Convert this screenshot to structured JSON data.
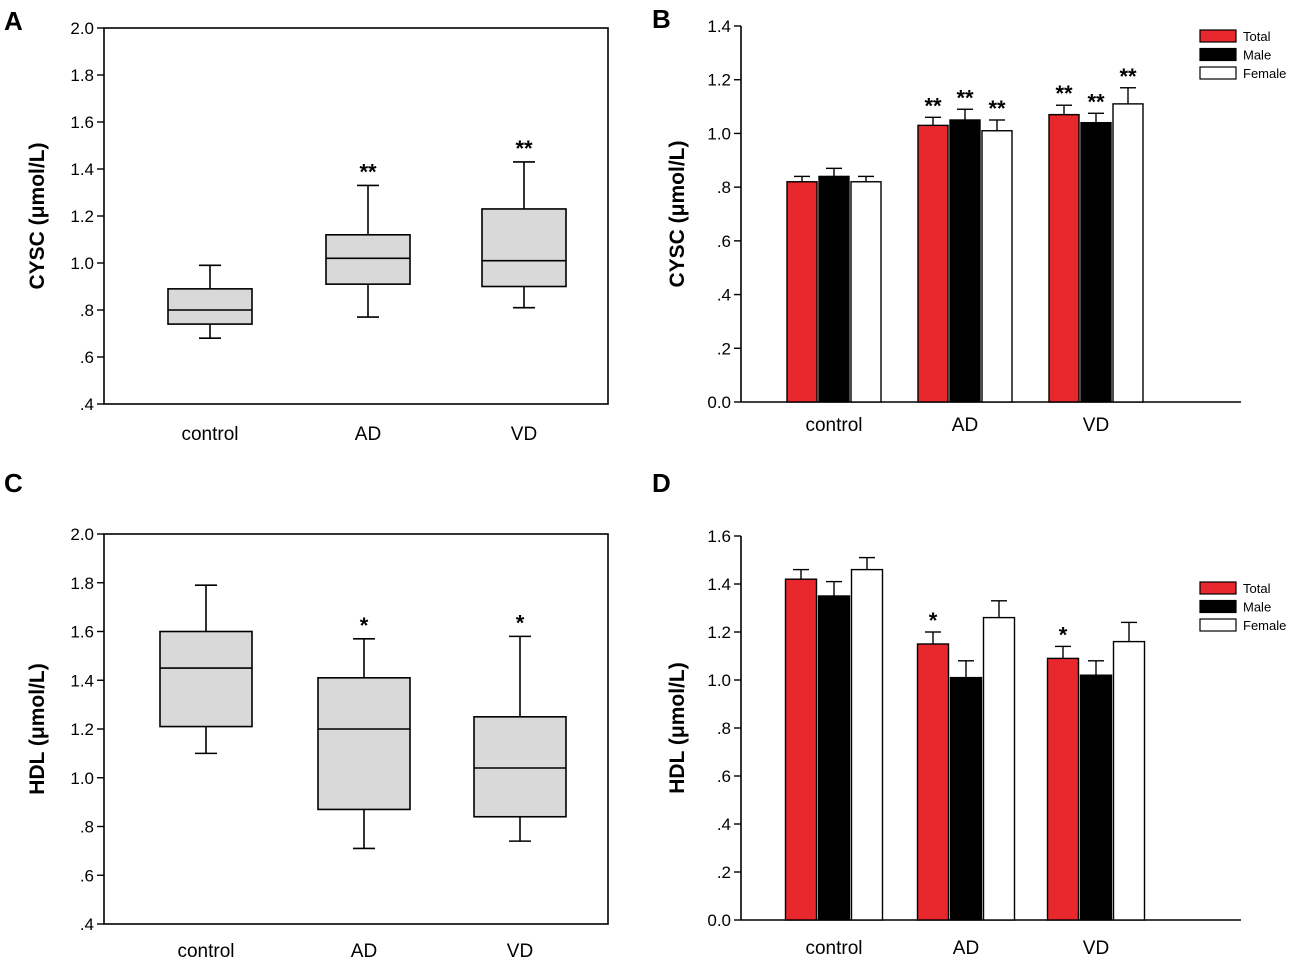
{
  "colors": {
    "total": "#e8282c",
    "male": "#000000",
    "female": "#ffffff",
    "box_fill": "#d9d9d9"
  },
  "chart_data": [
    {
      "panel": "A",
      "type": "box",
      "ylabel": "CYSC (μmol/L)",
      "ylim": [
        0.4,
        2.0
      ],
      "yticks": [
        0.4,
        0.6,
        0.8,
        1.0,
        1.2,
        1.4,
        1.6,
        1.8,
        2.0
      ],
      "ytick_labels": [
        ".4",
        ".6",
        ".8",
        "1.0",
        "1.2",
        "1.4",
        "1.6",
        "1.8",
        "2.0"
      ],
      "categories": [
        "control",
        "AD",
        "VD"
      ],
      "boxes": [
        {
          "min": 0.68,
          "q1": 0.74,
          "median": 0.8,
          "q3": 0.89,
          "max": 0.99,
          "sig": ""
        },
        {
          "min": 0.77,
          "q1": 0.91,
          "median": 1.02,
          "q3": 1.12,
          "max": 1.33,
          "sig": "**"
        },
        {
          "min": 0.81,
          "q1": 0.9,
          "median": 1.01,
          "q3": 1.23,
          "max": 1.43,
          "sig": "**"
        }
      ]
    },
    {
      "panel": "B",
      "type": "bar",
      "ylabel": "CYSC (μmol/L)",
      "ylim": [
        0.0,
        1.4
      ],
      "yticks": [
        0.0,
        0.2,
        0.4,
        0.6,
        0.8,
        1.0,
        1.2,
        1.4
      ],
      "ytick_labels": [
        "0.0",
        ".2",
        ".4",
        ".6",
        ".8",
        "1.0",
        "1.2",
        "1.4"
      ],
      "categories": [
        "control",
        "AD",
        "VD"
      ],
      "legend": [
        "Total",
        "Male",
        "Female"
      ],
      "series": [
        {
          "name": "Total",
          "values": [
            0.82,
            1.03,
            1.07
          ],
          "errors": [
            0.02,
            0.03,
            0.035
          ],
          "sig": [
            "",
            "**",
            "**"
          ]
        },
        {
          "name": "Male",
          "values": [
            0.84,
            1.05,
            1.04
          ],
          "errors": [
            0.03,
            0.04,
            0.035
          ],
          "sig": [
            "",
            "**",
            "**"
          ]
        },
        {
          "name": "Female",
          "values": [
            0.82,
            1.01,
            1.11
          ],
          "errors": [
            0.02,
            0.04,
            0.06
          ],
          "sig": [
            "",
            "**",
            "**"
          ]
        }
      ]
    },
    {
      "panel": "C",
      "type": "box",
      "ylabel": "HDL (μmol/L)",
      "ylim": [
        0.4,
        2.0
      ],
      "yticks": [
        0.4,
        0.6,
        0.8,
        1.0,
        1.2,
        1.4,
        1.6,
        1.8,
        2.0
      ],
      "ytick_labels": [
        ".4",
        ".6",
        ".8",
        "1.0",
        "1.2",
        "1.4",
        "1.6",
        "1.8",
        "2.0"
      ],
      "categories": [
        "control",
        "AD",
        "VD"
      ],
      "boxes": [
        {
          "min": 1.1,
          "q1": 1.21,
          "median": 1.45,
          "q3": 1.6,
          "max": 1.79,
          "sig": ""
        },
        {
          "min": 0.71,
          "q1": 0.87,
          "median": 1.2,
          "q3": 1.41,
          "max": 1.57,
          "sig": "*"
        },
        {
          "min": 0.74,
          "q1": 0.84,
          "median": 1.04,
          "q3": 1.25,
          "max": 1.58,
          "sig": "*"
        }
      ]
    },
    {
      "panel": "D",
      "type": "bar",
      "ylabel": "HDL (μmol/L)",
      "ylim": [
        0.0,
        1.6
      ],
      "yticks": [
        0.0,
        0.2,
        0.4,
        0.6,
        0.8,
        1.0,
        1.2,
        1.4,
        1.6
      ],
      "ytick_labels": [
        "0.0",
        ".2",
        ".4",
        ".6",
        ".8",
        "1.0",
        "1.2",
        "1.4",
        "1.6"
      ],
      "categories": [
        "control",
        "AD",
        "VD"
      ],
      "legend": [
        "Total",
        "Male",
        "Female"
      ],
      "series": [
        {
          "name": "Total",
          "values": [
            1.42,
            1.15,
            1.09
          ],
          "errors": [
            0.04,
            0.05,
            0.05
          ],
          "sig": [
            "",
            "*",
            "*"
          ]
        },
        {
          "name": "Male",
          "values": [
            1.35,
            1.01,
            1.02
          ],
          "errors": [
            0.06,
            0.07,
            0.06
          ],
          "sig": [
            "",
            "",
            ""
          ]
        },
        {
          "name": "Female",
          "values": [
            1.46,
            1.26,
            1.16
          ],
          "errors": [
            0.05,
            0.07,
            0.08
          ],
          "sig": [
            "",
            "",
            ""
          ]
        }
      ]
    }
  ]
}
